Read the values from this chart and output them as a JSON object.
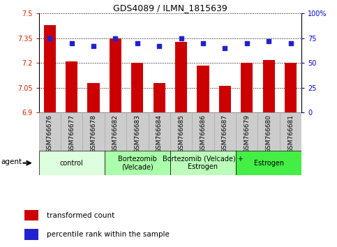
{
  "title": "GDS4089 / ILMN_1815639",
  "samples": [
    "GSM766676",
    "GSM766677",
    "GSM766678",
    "GSM766682",
    "GSM766683",
    "GSM766684",
    "GSM766685",
    "GSM766686",
    "GSM766687",
    "GSM766679",
    "GSM766680",
    "GSM766681"
  ],
  "bar_values": [
    7.43,
    7.21,
    7.08,
    7.35,
    7.2,
    7.08,
    7.33,
    7.185,
    7.06,
    7.2,
    7.22,
    7.2
  ],
  "dot_values": [
    75,
    70,
    67,
    75,
    70,
    67,
    75,
    70,
    65,
    70,
    72,
    70
  ],
  "y_min": 6.9,
  "y_max": 7.5,
  "y_ticks": [
    6.9,
    7.05,
    7.2,
    7.35,
    7.5
  ],
  "y_tick_labels": [
    "6.9",
    "7.05",
    "7.2",
    "7.35",
    "7.5"
  ],
  "y2_ticks": [
    0,
    25,
    50,
    75,
    100
  ],
  "y2_tick_labels": [
    "0",
    "25",
    "50",
    "75",
    "100%"
  ],
  "bar_color": "#cc0000",
  "dot_color": "#2222cc",
  "bar_width": 0.55,
  "groups": [
    {
      "label": "control",
      "start": 0,
      "end": 3,
      "color": "#ddffdd"
    },
    {
      "label": "Bortezomib\n(Velcade)",
      "start": 3,
      "end": 6,
      "color": "#aaffaa"
    },
    {
      "label": "Bortezomib (Velcade) +\nEstrogen",
      "start": 6,
      "end": 9,
      "color": "#bbffbb"
    },
    {
      "label": "Estrogen",
      "start": 9,
      "end": 12,
      "color": "#44ee44"
    }
  ],
  "agent_label": "agent",
  "legend_bar_label": "transformed count",
  "legend_dot_label": "percentile rank within the sample",
  "background_color": "#ffffff",
  "plot_bg_color": "#ffffff",
  "tick_label_color_left": "#cc2200",
  "tick_label_color_right": "#0000cc",
  "title_color": "#000000",
  "xtick_bg_color": "#cccccc",
  "xtick_border_color": "#aaaaaa"
}
